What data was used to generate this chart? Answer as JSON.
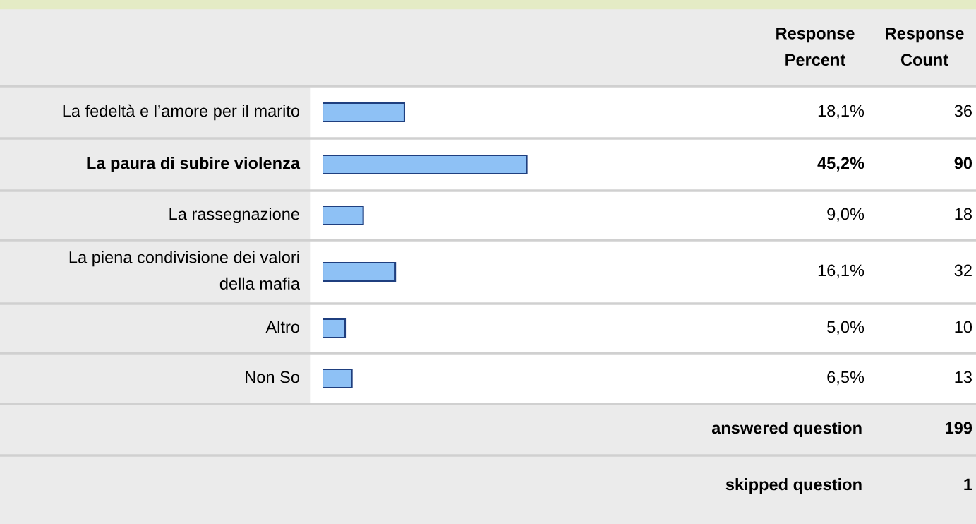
{
  "chart_data": {
    "type": "bar",
    "orientation": "horizontal",
    "categories": [
      "La fedeltà e l’amore per il marito",
      "La paura di subire violenza",
      "La rassegnazione",
      "La piena condivisione dei valori della mafia",
      "Altro",
      "Non So"
    ],
    "values": [
      18.1,
      45.2,
      9.0,
      16.1,
      5.0,
      6.5
    ],
    "value_labels": [
      "18,1%",
      "45,2%",
      "9,0%",
      "16,1%",
      "5,0%",
      "6,5%"
    ],
    "color": "#8ec1f5",
    "annotations": [
      "Response Percent",
      "Response Count",
      "36",
      "90",
      "18",
      "32",
      "10",
      "13",
      "answered question",
      "199",
      "skipped question",
      "1"
    ]
  }
}
